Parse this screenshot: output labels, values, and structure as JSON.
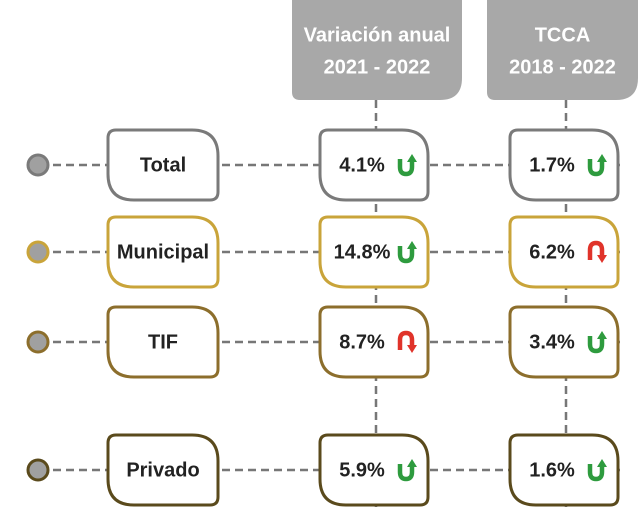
{
  "headers": [
    {
      "lines": [
        "Variación anual",
        "2021 - 2022"
      ]
    },
    {
      "lines": [
        "TCCA",
        "2018 - 2022"
      ]
    }
  ],
  "rows": [
    {
      "label": "Total",
      "color": "#7a7a7a",
      "cells": [
        {
          "text": "4.1%",
          "trend": "up"
        },
        {
          "text": "1.7%",
          "trend": "up"
        }
      ]
    },
    {
      "label": "Municipal",
      "color": "#c9a43a",
      "cells": [
        {
          "text": "14.8%",
          "trend": "up"
        },
        {
          "text": "6.2%",
          "trend": "down"
        }
      ]
    },
    {
      "label": "TIF",
      "color": "#8c6e2c",
      "cells": [
        {
          "text": "8.7%",
          "trend": "down"
        },
        {
          "text": "3.4%",
          "trend": "up"
        }
      ]
    },
    {
      "label": "Privado",
      "color": "#5a4a1c",
      "cells": [
        {
          "text": "5.9%",
          "trend": "up"
        },
        {
          "text": "1.6%",
          "trend": "up"
        }
      ]
    }
  ]
}
